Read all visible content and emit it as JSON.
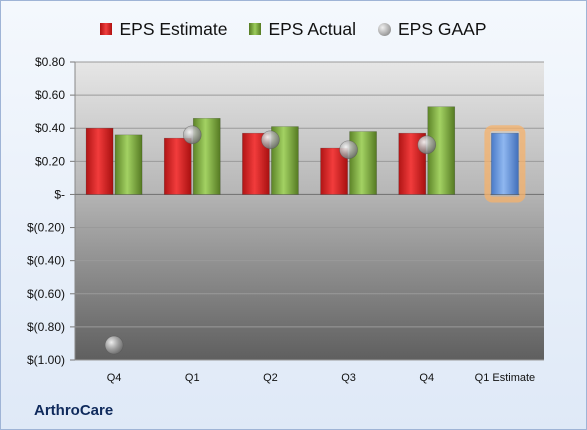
{
  "company": "ArthroCare",
  "legend": {
    "estimate": "EPS Estimate",
    "actual": "EPS Actual",
    "gaap": "EPS GAAP"
  },
  "chart_data": {
    "type": "bar",
    "categories": [
      "Q4",
      "Q1",
      "Q2",
      "Q3",
      "Q4",
      "Q1 Estimate"
    ],
    "series": [
      {
        "name": "EPS Estimate",
        "values": [
          0.4,
          0.34,
          0.37,
          0.28,
          0.37,
          null
        ]
      },
      {
        "name": "EPS Actual",
        "values": [
          0.36,
          0.46,
          0.41,
          0.38,
          0.53,
          null
        ]
      },
      {
        "name": "EPS GAAP",
        "values": [
          -0.91,
          0.36,
          0.33,
          0.27,
          0.3,
          null
        ]
      },
      {
        "name": "Q1 Estimate",
        "values": [
          null,
          null,
          null,
          null,
          null,
          0.37
        ]
      }
    ],
    "y_ticks": [
      "$0.80",
      "$0.60",
      "$0.40",
      "$0.20",
      "$-",
      "$(0.20)",
      "$(0.40)",
      "$(0.60)",
      "$(0.80)",
      "$(1.00)"
    ],
    "ylim": [
      -1.0,
      0.8
    ],
    "grid": true,
    "legend_position": "top",
    "colors": {
      "estimate": "#e02a2a",
      "actual": "#88b94a",
      "gaap": "#a0a0a0",
      "forecast": "#6b9be0",
      "forecast_glow": "#f6b26b"
    }
  }
}
